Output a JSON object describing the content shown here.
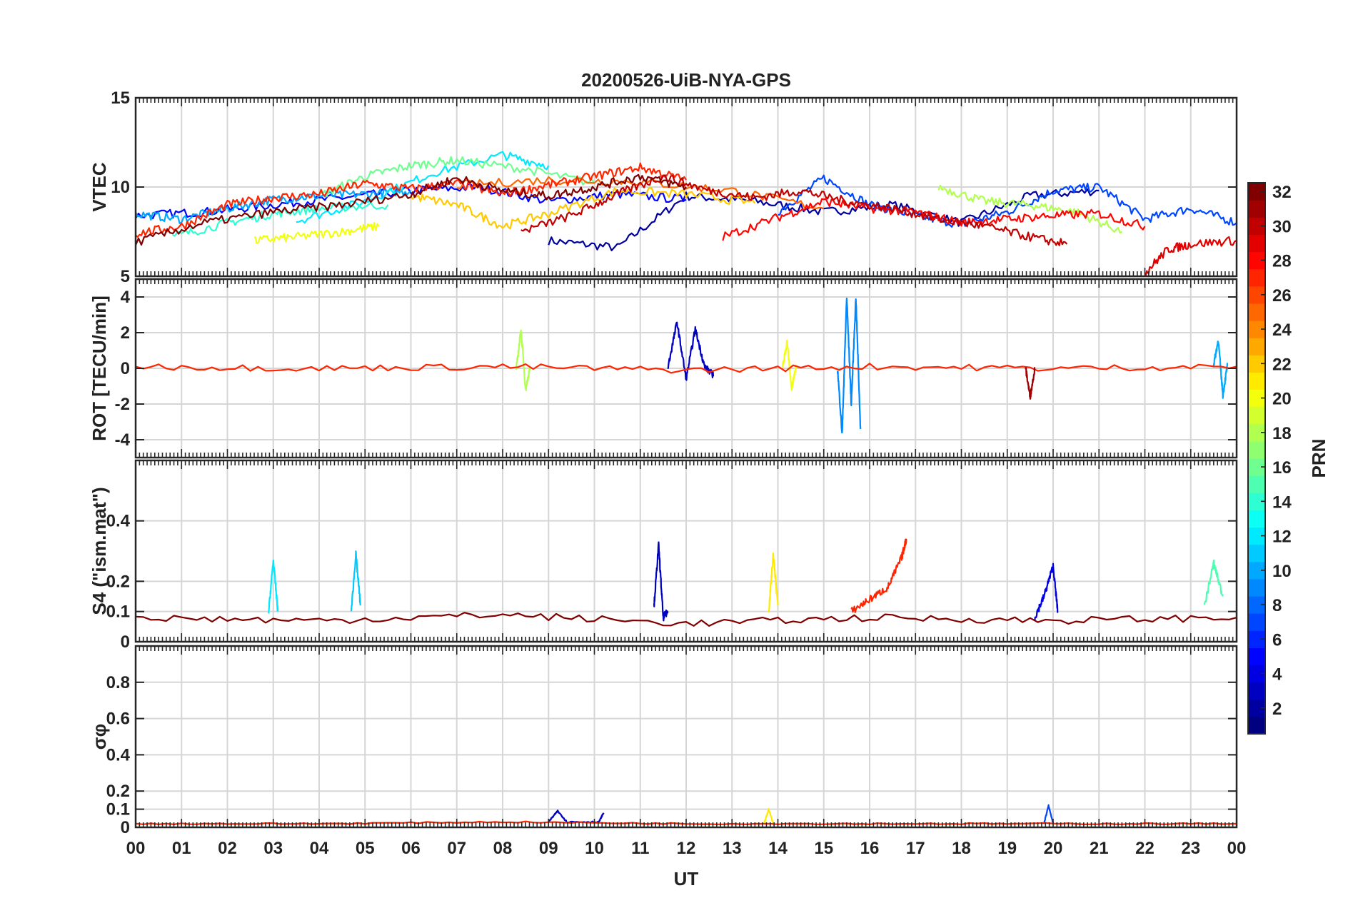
{
  "title": "20200526-UiB-NYA-GPS",
  "xlabel": "UT",
  "x_ticks": [
    "00",
    "01",
    "02",
    "03",
    "04",
    "05",
    "06",
    "07",
    "08",
    "09",
    "10",
    "11",
    "12",
    "13",
    "14",
    "15",
    "16",
    "17",
    "18",
    "19",
    "20",
    "21",
    "22",
    "23",
    "00"
  ],
  "colorbar": {
    "label": "PRN",
    "ticks": [
      2,
      4,
      6,
      8,
      10,
      12,
      14,
      16,
      18,
      20,
      22,
      24,
      26,
      28,
      30,
      32
    ],
    "range": [
      1,
      32
    ],
    "colormap": "jet"
  },
  "chart_data": [
    {
      "type": "line",
      "ylabel": "VTEC",
      "ylim": [
        5,
        15
      ],
      "yticks": [
        5,
        10,
        15
      ],
      "xlim": [
        0,
        24
      ],
      "grid": true,
      "series": [
        {
          "prn": 2,
          "x": [
            9.0,
            10.5,
            12.0,
            13.5,
            15.0,
            16.5,
            18.0,
            19.5,
            21.0
          ],
          "y": [
            7.0,
            6.6,
            9.5,
            9.2,
            8.6,
            9.0,
            8.0,
            9.5,
            9.8
          ]
        },
        {
          "prn": 5,
          "x": [
            0.0,
            1.5,
            3.0,
            4.5,
            6.0,
            7.5,
            9.0,
            10.5,
            12.0
          ],
          "y": [
            8.4,
            8.6,
            9.0,
            9.4,
            9.8,
            10.0,
            9.2,
            9.6,
            9.3
          ]
        },
        {
          "prn": 7,
          "x": [
            14.0,
            15.0,
            16.0,
            17.0,
            18.0,
            19.0,
            20.0,
            21.0,
            22.0,
            23.0,
            24.0
          ],
          "y": [
            8.6,
            10.5,
            9.0,
            8.4,
            7.9,
            8.6,
            9.8,
            10.0,
            8.2,
            8.8,
            8.0
          ]
        },
        {
          "prn": 10,
          "x": [
            0.0,
            1.0,
            2.0,
            3.0,
            4.0,
            5.0,
            6.0
          ],
          "y": [
            8.5,
            8.2,
            8.8,
            9.3,
            9.5,
            9.6,
            9.8
          ]
        },
        {
          "prn": 12,
          "x": [
            3.5,
            5.0,
            6.5,
            8.0,
            9.0
          ],
          "y": [
            8.1,
            9.2,
            10.8,
            11.8,
            11.2
          ]
        },
        {
          "prn": 14,
          "x": [
            0.8,
            2.0,
            3.0,
            4.0,
            5.5
          ],
          "y": [
            7.2,
            8.0,
            8.5,
            8.8,
            9.0
          ]
        },
        {
          "prn": 16,
          "x": [
            4.0,
            5.0,
            6.0,
            7.0,
            8.5,
            10.0
          ],
          "y": [
            9.5,
            10.6,
            11.2,
            11.5,
            11.0,
            10.2
          ]
        },
        {
          "prn": 18,
          "x": [
            17.5,
            18.5,
            19.5,
            20.5,
            21.5
          ],
          "y": [
            10.0,
            9.2,
            9.0,
            8.6,
            7.5
          ]
        },
        {
          "prn": 20,
          "x": [
            2.6,
            3.5,
            4.5,
            5.3
          ],
          "y": [
            7.0,
            7.2,
            7.5,
            7.8
          ]
        },
        {
          "prn": 22,
          "x": [
            6.0,
            7.0,
            8.0,
            9.0,
            10.5,
            12.0,
            13.5
          ],
          "y": [
            9.5,
            9.0,
            7.8,
            8.5,
            9.8,
            9.6,
            9.1
          ]
        },
        {
          "prn": 25,
          "x": [
            7.0,
            9.0,
            11.0,
            13.0,
            15.0
          ],
          "y": [
            10.1,
            10.4,
            10.3,
            9.8,
            8.8
          ]
        },
        {
          "prn": 27,
          "x": [
            0.0,
            1.0,
            2.0,
            3.0,
            4.0,
            5.0,
            6.0,
            7.0,
            8.0,
            9.0,
            10.0,
            11.0,
            12.0
          ],
          "y": [
            7.4,
            7.8,
            9.0,
            9.4,
            9.6,
            10.2,
            9.9,
            10.2,
            9.6,
            10.1,
            10.6,
            11.1,
            10.4
          ]
        },
        {
          "prn": 28,
          "x": [
            12.8,
            14.0,
            15.0,
            16.0,
            17.0,
            18.0,
            19.0,
            20.0,
            21.0,
            22.0
          ],
          "y": [
            7.2,
            8.3,
            9.2,
            8.8,
            8.6,
            8.0,
            8.2,
            8.4,
            8.5,
            7.8
          ]
        },
        {
          "prn": 29,
          "x": [
            22.0,
            22.5,
            23.0,
            24.0
          ],
          "y": [
            5.2,
            6.5,
            6.8,
            7.0
          ]
        },
        {
          "prn": 30,
          "x": [
            8.4,
            9.5,
            10.5,
            11.5,
            12.5,
            13.5,
            14.5,
            15.5,
            16.5,
            17.5,
            18.5,
            19.5,
            20.3
          ],
          "y": [
            7.5,
            8.4,
            9.6,
            10.6,
            9.8,
            9.4,
            9.8,
            9.2,
            8.8,
            8.2,
            7.8,
            7.2,
            6.8
          ]
        },
        {
          "prn": 32,
          "x": [
            0.0,
            1.5,
            3.0,
            4.5,
            6.0,
            7.0,
            8.0,
            9.0,
            10.0,
            11.0,
            12.0
          ],
          "y": [
            6.9,
            8.0,
            8.6,
            9.0,
            9.6,
            10.5,
            9.8,
            9.5,
            10.0,
            10.6,
            10.0
          ]
        }
      ]
    },
    {
      "type": "line",
      "ylabel": "ROT [TECU/min]",
      "ylim": [
        -5,
        5
      ],
      "yticks": [
        -4,
        -2,
        0,
        2,
        4
      ],
      "xlim": [
        0,
        24
      ],
      "grid": true,
      "series": [
        {
          "prn": 3,
          "x": [
            11.6,
            11.8,
            12.0,
            12.2,
            12.4,
            12.6
          ],
          "y": [
            0.0,
            2.6,
            -0.6,
            2.2,
            0.1,
            -0.4
          ]
        },
        {
          "prn": 9,
          "x": [
            15.3,
            15.4,
            15.5,
            15.6,
            15.7,
            15.8
          ],
          "y": [
            0.0,
            -3.7,
            4.0,
            -2.0,
            4.0,
            -3.4
          ]
        },
        {
          "prn": 10,
          "x": [
            23.5,
            23.6,
            23.7,
            23.8
          ],
          "y": [
            0.2,
            1.6,
            -1.5,
            0.2
          ]
        },
        {
          "prn": 18,
          "x": [
            8.3,
            8.4,
            8.5,
            8.6
          ],
          "y": [
            0.0,
            2.2,
            -1.2,
            0.1
          ]
        },
        {
          "prn": 20,
          "x": [
            14.1,
            14.2,
            14.3,
            14.4
          ],
          "y": [
            0.0,
            1.5,
            -1.2,
            0.2
          ]
        },
        {
          "prn": 27,
          "x": [
            0.0,
            4.0,
            8.0,
            12.0,
            16.0,
            20.0,
            24.0
          ],
          "y": [
            0.1,
            0.0,
            0.1,
            -0.1,
            0.1,
            0.0,
            0.1
          ]
        },
        {
          "prn": 31,
          "x": [
            19.4,
            19.5,
            19.6
          ],
          "y": [
            0.0,
            -1.6,
            0.0
          ]
        }
      ]
    },
    {
      "type": "line",
      "ylabel": "S4 (\"ism.mat\")",
      "ylim": [
        0,
        0.6
      ],
      "yticks": [
        0,
        0.1,
        0.2,
        0.4
      ],
      "xlim": [
        0,
        24
      ],
      "grid": true,
      "series": [
        {
          "prn": 3,
          "x": [
            11.3,
            11.4,
            11.5,
            11.6
          ],
          "y": [
            0.12,
            0.32,
            0.08,
            0.1
          ]
        },
        {
          "prn": 4,
          "x": [
            19.6,
            19.8,
            20.0,
            20.1
          ],
          "y": [
            0.08,
            0.15,
            0.25,
            0.1
          ]
        },
        {
          "prn": 11,
          "x": [
            4.7,
            4.8,
            4.9
          ],
          "y": [
            0.1,
            0.29,
            0.12
          ]
        },
        {
          "prn": 12,
          "x": [
            2.9,
            3.0,
            3.1
          ],
          "y": [
            0.1,
            0.27,
            0.1
          ]
        },
        {
          "prn": 15,
          "x": [
            23.3,
            23.5,
            23.7
          ],
          "y": [
            0.12,
            0.26,
            0.15
          ]
        },
        {
          "prn": 21,
          "x": [
            13.8,
            13.9,
            14.0
          ],
          "y": [
            0.1,
            0.29,
            0.12
          ]
        },
        {
          "prn": 27,
          "x": [
            15.6,
            16.0,
            16.4,
            16.7,
            16.8
          ],
          "y": [
            0.1,
            0.14,
            0.18,
            0.28,
            0.34
          ]
        },
        {
          "prn": 32,
          "x": [
            0.0,
            4.0,
            8.0,
            12.0,
            16.0,
            20.0,
            24.0
          ],
          "y": [
            0.08,
            0.07,
            0.09,
            0.06,
            0.08,
            0.07,
            0.08
          ]
        }
      ]
    },
    {
      "type": "line",
      "ylabel": "σφ",
      "ylim": [
        0,
        1
      ],
      "yticks": [
        0,
        0.1,
        0.2,
        0.4,
        0.6,
        0.8
      ],
      "xlim": [
        0,
        24
      ],
      "grid": true,
      "series": [
        {
          "prn": 3,
          "x": [
            9.0,
            9.2,
            9.4,
            10.1,
            10.2
          ],
          "y": [
            0.03,
            0.09,
            0.03,
            0.03,
            0.08
          ]
        },
        {
          "prn": 7,
          "x": [
            19.8,
            19.9,
            20.0
          ],
          "y": [
            0.02,
            0.12,
            0.02
          ]
        },
        {
          "prn": 21,
          "x": [
            13.7,
            13.8,
            13.9
          ],
          "y": [
            0.02,
            0.1,
            0.02
          ]
        },
        {
          "prn": 27,
          "x": [
            0.0,
            4.0,
            8.0,
            12.0,
            16.0,
            20.0,
            24.0
          ],
          "y": [
            0.02,
            0.02,
            0.03,
            0.02,
            0.02,
            0.02,
            0.02
          ]
        }
      ]
    }
  ]
}
